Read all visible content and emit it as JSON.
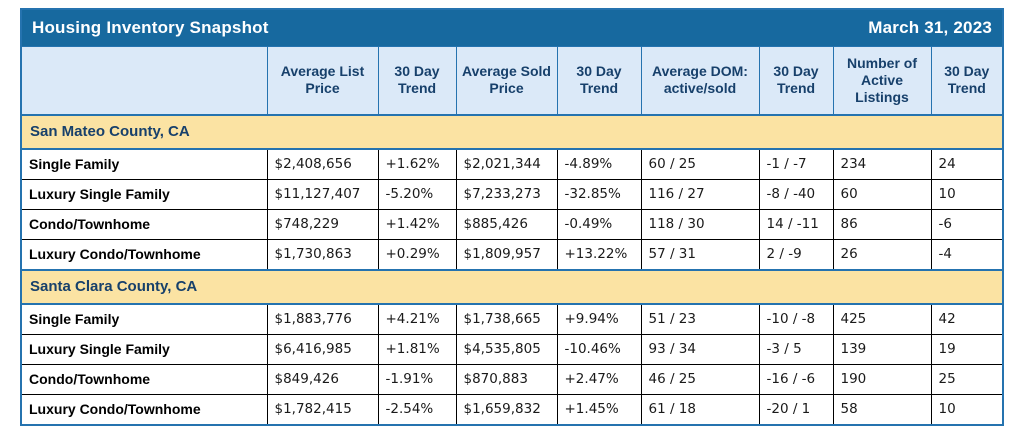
{
  "title_bar": {
    "title": "Housing Inventory Snapshot",
    "date": "March 31, 2023"
  },
  "colors": {
    "title_bg": "#17699f",
    "header_bg": "#dbe9f8",
    "section_bg": "#fbe3a3",
    "dark_blue_text": "#17406b",
    "border_blue": "#2573af",
    "positive_green": "#1e9b1e",
    "negative_red": "#ff0000"
  },
  "columns": [
    "",
    "Average List Price",
    "30 Day Trend",
    "Average Sold Price",
    "30 Day Trend",
    "Average DOM: active/sold",
    "30 Day Trend",
    "Number of Active Listings",
    "30 Day Trend"
  ],
  "sections": [
    {
      "name": "San Mateo County, CA",
      "rows": [
        {
          "label": "Single Family",
          "cells": [
            "$2,408,656",
            "+1.62%",
            "$2,021,344",
            "-4.89%",
            "60 / 25",
            "-1 / -7",
            "234",
            "24"
          ]
        },
        {
          "label": "Luxury Single Family",
          "cells": [
            "$11,127,407",
            "-5.20%",
            "$7,233,273",
            "-32.85%",
            "116 / 27",
            "-8 / -40",
            "60",
            "10"
          ]
        },
        {
          "label": "Condo/Townhome",
          "cells": [
            "$748,229",
            "+1.42%",
            "$885,426",
            "-0.49%",
            "118 / 30",
            "14 / -11",
            "86",
            "-6"
          ]
        },
        {
          "label": "Luxury Condo/Townhome",
          "cells": [
            "$1,730,863",
            "+0.29%",
            "$1,809,957",
            "+13.22%",
            "57 / 31",
            "2 / -9",
            "26",
            "-4"
          ]
        }
      ]
    },
    {
      "name": "Santa Clara County, CA",
      "rows": [
        {
          "label": "Single Family",
          "cells": [
            "$1,883,776",
            "+4.21%",
            "$1,738,665",
            "+9.94%",
            "51 / 23",
            "-10 / -8",
            "425",
            "42"
          ]
        },
        {
          "label": "Luxury Single Family",
          "cells": [
            "$6,416,985",
            "+1.81%",
            "$4,535,805",
            "-10.46%",
            "93 / 34",
            "-3 / 5",
            "139",
            "19"
          ]
        },
        {
          "label": "Condo/Townhome",
          "cells": [
            "$849,426",
            "-1.91%",
            "$870,883",
            "+2.47%",
            "46 / 25",
            "-16 / -6",
            "190",
            "25"
          ]
        },
        {
          "label": "Luxury Condo/Townhome",
          "cells": [
            "$1,782,415",
            "-2.54%",
            "$1,659,832",
            "+1.45%",
            "61 / 18",
            "-20 / 1",
            "58",
            "10"
          ]
        }
      ]
    }
  ]
}
